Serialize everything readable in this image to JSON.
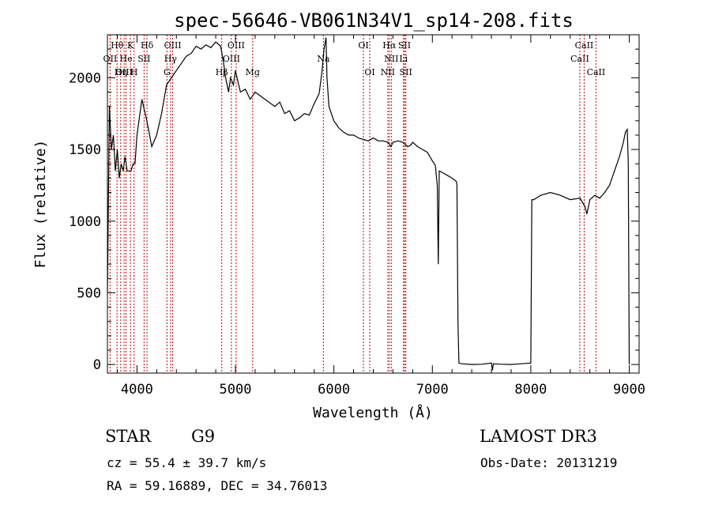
{
  "title": "spec-56646-VB061N34V1_sp14-208.fits",
  "info": {
    "class": "STAR",
    "subclass": "G9",
    "survey": "LAMOST DR3",
    "cz": "cz = 55.4 ± 39.7 km/s",
    "obs_date": "Obs-Date: 20131219",
    "coords": "RA =  59.16889, DEC =  34.76013"
  },
  "chart_data": {
    "type": "line",
    "title": "spec-56646-VB061N34V1_sp14-208.fits",
    "xlabel": "Wavelength (Å)",
    "ylabel": "Flux (relative)",
    "xlim": [
      3700,
      9100
    ],
    "ylim": [
      -60,
      2300
    ],
    "xticks": [
      4000,
      5000,
      6000,
      7000,
      8000,
      9000
    ],
    "yticks": [
      0,
      500,
      1000,
      1500,
      2000
    ],
    "line_color": "#000000",
    "marker_color": "#cc0000",
    "series": [
      {
        "name": "flux",
        "x": [
          3700,
          3720,
          3740,
          3760,
          3780,
          3800,
          3820,
          3840,
          3860,
          3880,
          3900,
          3920,
          3940,
          3960,
          3980,
          4000,
          4050,
          4100,
          4150,
          4200,
          4250,
          4300,
          4350,
          4400,
          4450,
          4500,
          4550,
          4600,
          4650,
          4700,
          4750,
          4800,
          4850,
          4880,
          4900,
          4930,
          4950,
          4980,
          5000,
          5050,
          5100,
          5150,
          5200,
          5300,
          5400,
          5450,
          5500,
          5550,
          5600,
          5650,
          5700,
          5750,
          5800,
          5850,
          5880,
          5900,
          5920,
          5930,
          5950,
          6000,
          6050,
          6100,
          6150,
          6200,
          6250,
          6300,
          6350,
          6400,
          6450,
          6500,
          6550,
          6580,
          6600,
          6650,
          6700,
          6750,
          6780,
          6800,
          6850,
          6900,
          6950,
          7000,
          7030,
          7050,
          7060,
          7070,
          7100,
          7150,
          7200,
          7240,
          7250,
          7260,
          7270,
          7300,
          7400,
          7500,
          7600,
          7610,
          7620,
          7700,
          7800,
          7900,
          8000,
          8010,
          8030,
          8100,
          8200,
          8300,
          8400,
          8500,
          8550,
          8570,
          8600,
          8650,
          8700,
          8750,
          8800,
          8850,
          8900,
          8940,
          8960,
          8980,
          8990,
          9000
        ],
        "y": [
          500,
          1800,
          1500,
          1600,
          1350,
          1500,
          1300,
          1400,
          1350,
          1450,
          1350,
          1350,
          1350,
          1400,
          1400,
          1600,
          1850,
          1700,
          1520,
          1600,
          1750,
          1950,
          2000,
          2050,
          2100,
          2150,
          2170,
          2220,
          2200,
          2230,
          2210,
          2250,
          2220,
          2100,
          2000,
          1900,
          2000,
          1950,
          2050,
          1900,
          1920,
          1850,
          1900,
          1850,
          1800,
          1830,
          1750,
          1770,
          1700,
          1720,
          1750,
          1740,
          1820,
          1890,
          2050,
          2200,
          2280,
          2000,
          1800,
          1700,
          1650,
          1620,
          1600,
          1600,
          1580,
          1570,
          1560,
          1580,
          1560,
          1560,
          1550,
          1520,
          1550,
          1560,
          1550,
          1520,
          1530,
          1550,
          1520,
          1500,
          1480,
          1420,
          1390,
          1250,
          700,
          1350,
          1340,
          1320,
          1300,
          1280,
          1260,
          300,
          10,
          5,
          0,
          2,
          10,
          -40,
          5,
          2,
          0,
          5,
          10,
          1150,
          1150,
          1180,
          1200,
          1180,
          1150,
          1160,
          1100,
          1050,
          1150,
          1180,
          1160,
          1200,
          1250,
          1350,
          1450,
          1550,
          1620,
          1640,
          1400,
          0
        ]
      }
    ],
    "lines": [
      {
        "name": "Hθ",
        "wl": 3798,
        "row": 0
      },
      {
        "name": "OII",
        "wl": 3727,
        "row": 1
      },
      {
        "name": "OIII",
        "wl": 3869,
        "row": 2
      },
      {
        "name": "He",
        "wl": 3889,
        "row": 1
      },
      {
        "name": "Hη",
        "wl": 3835,
        "row": 2
      },
      {
        "name": "K",
        "wl": 3934,
        "row": 0
      },
      {
        "name": "H",
        "wl": 3970,
        "row": 2
      },
      {
        "name": "SII",
        "wl": 4072,
        "row": 1
      },
      {
        "name": "Hδ",
        "wl": 4102,
        "row": 0
      },
      {
        "name": "OIII",
        "wl": 4363,
        "row": 0
      },
      {
        "name": "Hγ",
        "wl": 4341,
        "row": 1
      },
      {
        "name": "G",
        "wl": 4305,
        "row": 2
      },
      {
        "name": "Hβ",
        "wl": 4861,
        "row": 2
      },
      {
        "name": "OIII",
        "wl": 4959,
        "row": 1
      },
      {
        "name": "OIII",
        "wl": 5007,
        "row": 0
      },
      {
        "name": "Mg",
        "wl": 5175,
        "row": 2
      },
      {
        "name": "Na",
        "wl": 5893,
        "row": 1
      },
      {
        "name": "OI",
        "wl": 6300,
        "row": 0
      },
      {
        "name": "OI",
        "wl": 6364,
        "row": 2
      },
      {
        "name": "NII",
        "wl": 6548,
        "row": 2
      },
      {
        "name": "NII",
        "wl": 6583,
        "row": 1
      },
      {
        "name": "Hα",
        "wl": 6563,
        "row": 0
      },
      {
        "name": "SII",
        "wl": 6717,
        "row": 0
      },
      {
        "name": "SII",
        "wl": 6731,
        "row": 2
      },
      {
        "name": "Li",
        "wl": 6707,
        "row": 1
      },
      {
        "name": "CaII",
        "wl": 8498,
        "row": 1
      },
      {
        "name": "CaII",
        "wl": 8542,
        "row": 0
      },
      {
        "name": "CaII",
        "wl": 8662,
        "row": 2
      }
    ]
  }
}
